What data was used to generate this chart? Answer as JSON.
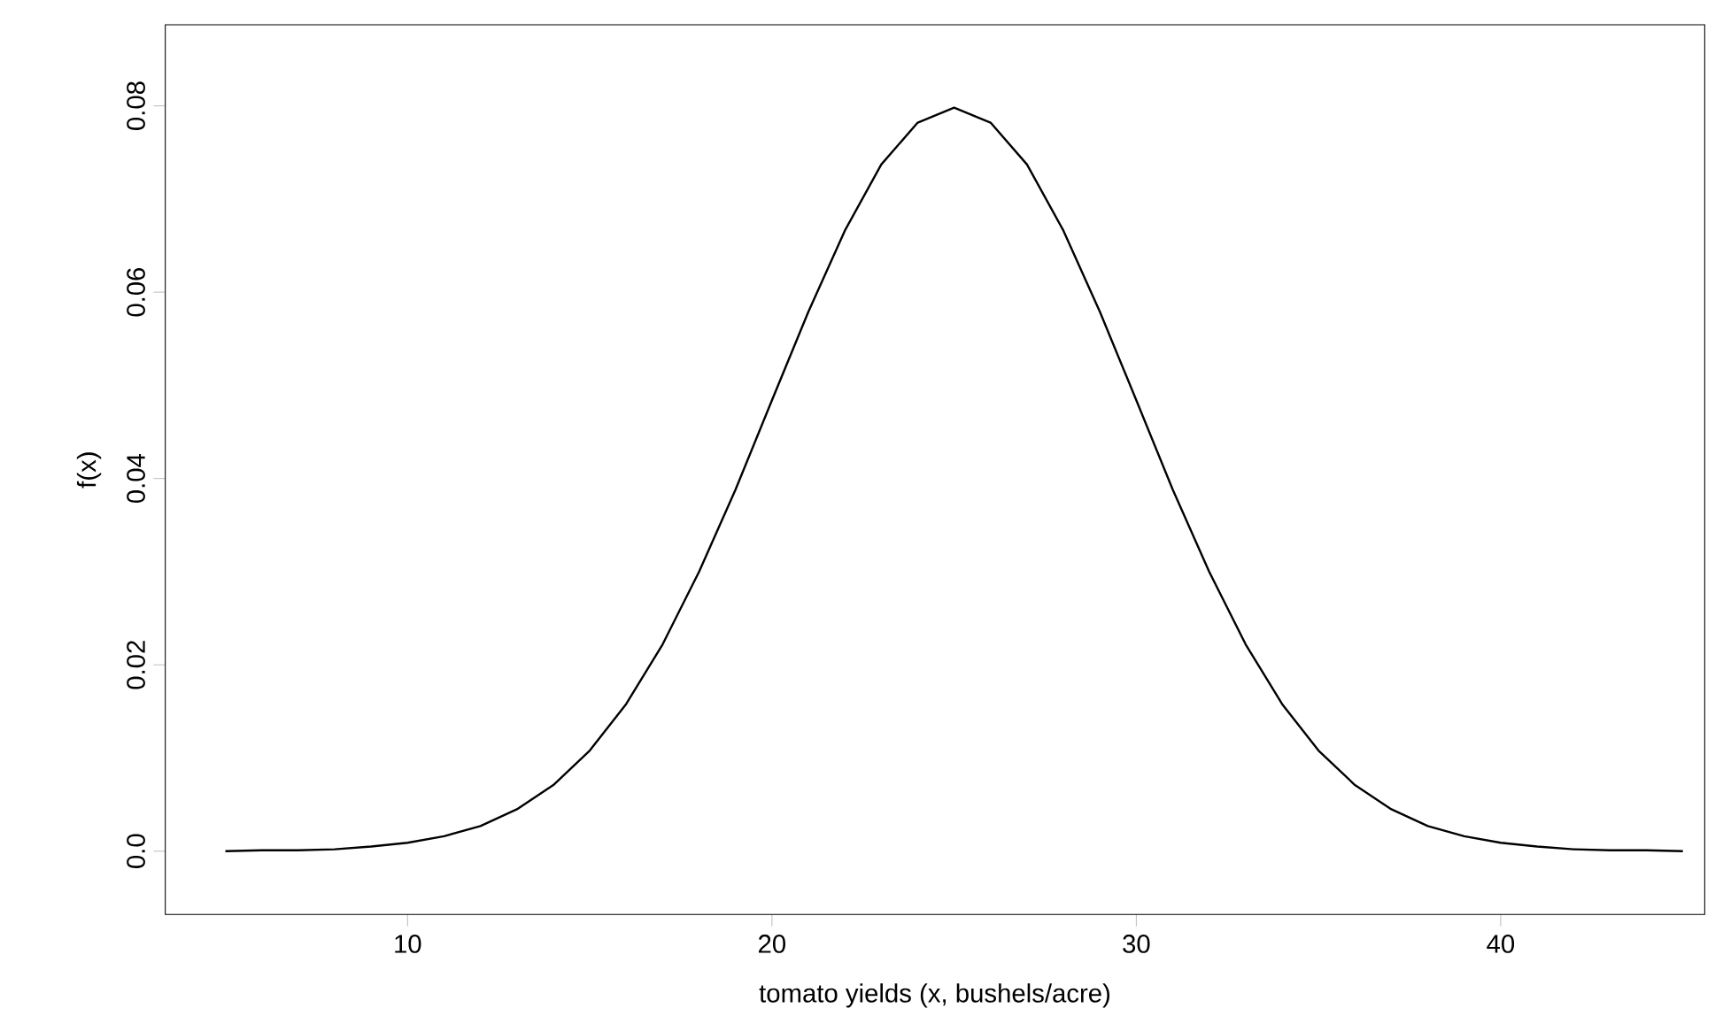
{
  "chart_data": {
    "type": "line",
    "xlabel": "tomato yields (x, bushels/acre)",
    "ylabel": "f(x)",
    "x": [
      5,
      6,
      7,
      8,
      9,
      10,
      11,
      12,
      13,
      14,
      15,
      16,
      17,
      18,
      19,
      20,
      21,
      22,
      23,
      24,
      25,
      26,
      27,
      28,
      29,
      30,
      31,
      32,
      33,
      34,
      35,
      36,
      37,
      38,
      39,
      40,
      41,
      42,
      43,
      44,
      45
    ],
    "series": [
      {
        "color": "#000000",
        "values": [
          0.0,
          0.0001,
          0.0001,
          0.0002,
          0.0005,
          0.0009,
          0.0016,
          0.0027,
          0.0045,
          0.0071,
          0.0108,
          0.0158,
          0.0222,
          0.03,
          0.0388,
          0.0484,
          0.0579,
          0.0666,
          0.0737,
          0.0782,
          0.0798,
          0.0782,
          0.0737,
          0.0666,
          0.0579,
          0.0484,
          0.0388,
          0.03,
          0.0222,
          0.0158,
          0.0108,
          0.0071,
          0.0045,
          0.0027,
          0.0016,
          0.0009,
          0.0005,
          0.0002,
          0.0001,
          0.0001,
          0.0
        ]
      }
    ],
    "xlim": [
      3.35,
      45.6
    ],
    "ylim": [
      -0.0068,
      0.0887
    ],
    "xticks": [
      10,
      20,
      30,
      40
    ],
    "yticks": [
      {
        "value": 0,
        "label": "0.0"
      },
      0.02,
      0.04,
      0.06,
      0.08
    ],
    "grid": false,
    "marker": "none",
    "line_style": "solid"
  }
}
